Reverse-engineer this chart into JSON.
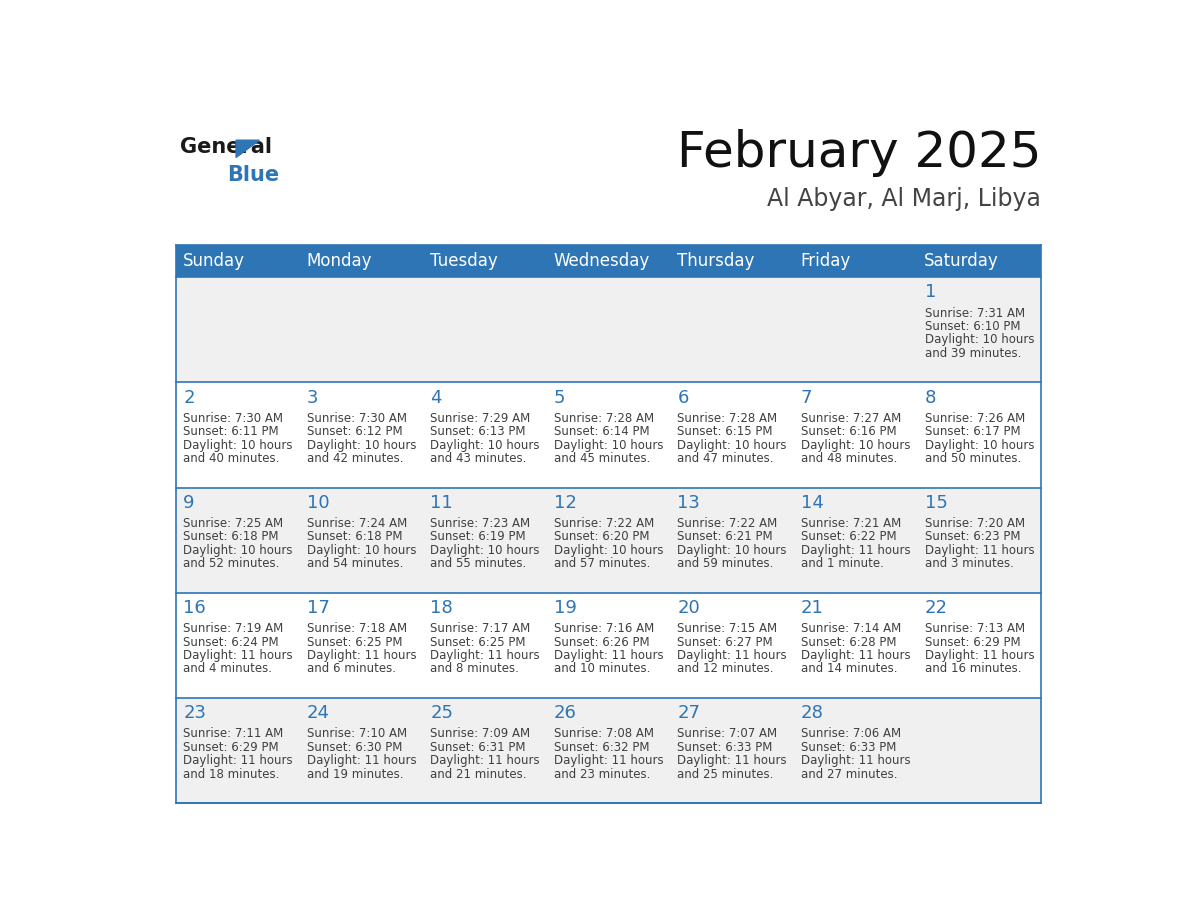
{
  "title": "February 2025",
  "subtitle": "Al Abyar, Al Marj, Libya",
  "header_bg_color": "#2E75B6",
  "header_text_color": "#FFFFFF",
  "day_names": [
    "Sunday",
    "Monday",
    "Tuesday",
    "Wednesday",
    "Thursday",
    "Friday",
    "Saturday"
  ],
  "odd_row_bg": "#F0F0F0",
  "even_row_bg": "#FFFFFF",
  "cell_border_color": "#2E75B6",
  "number_color": "#2E75B6",
  "text_color": "#404040",
  "logo_general_color": "#1a1a1a",
  "logo_blue_color": "#2E75B6",
  "days": [
    {
      "day": 1,
      "col": 6,
      "row": 0,
      "sunrise": "7:31 AM",
      "sunset": "6:10 PM",
      "daylight": "10 hours",
      "daylight2": "and 39 minutes."
    },
    {
      "day": 2,
      "col": 0,
      "row": 1,
      "sunrise": "7:30 AM",
      "sunset": "6:11 PM",
      "daylight": "10 hours",
      "daylight2": "and 40 minutes."
    },
    {
      "day": 3,
      "col": 1,
      "row": 1,
      "sunrise": "7:30 AM",
      "sunset": "6:12 PM",
      "daylight": "10 hours",
      "daylight2": "and 42 minutes."
    },
    {
      "day": 4,
      "col": 2,
      "row": 1,
      "sunrise": "7:29 AM",
      "sunset": "6:13 PM",
      "daylight": "10 hours",
      "daylight2": "and 43 minutes."
    },
    {
      "day": 5,
      "col": 3,
      "row": 1,
      "sunrise": "7:28 AM",
      "sunset": "6:14 PM",
      "daylight": "10 hours",
      "daylight2": "and 45 minutes."
    },
    {
      "day": 6,
      "col": 4,
      "row": 1,
      "sunrise": "7:28 AM",
      "sunset": "6:15 PM",
      "daylight": "10 hours",
      "daylight2": "and 47 minutes."
    },
    {
      "day": 7,
      "col": 5,
      "row": 1,
      "sunrise": "7:27 AM",
      "sunset": "6:16 PM",
      "daylight": "10 hours",
      "daylight2": "and 48 minutes."
    },
    {
      "day": 8,
      "col": 6,
      "row": 1,
      "sunrise": "7:26 AM",
      "sunset": "6:17 PM",
      "daylight": "10 hours",
      "daylight2": "and 50 minutes."
    },
    {
      "day": 9,
      "col": 0,
      "row": 2,
      "sunrise": "7:25 AM",
      "sunset": "6:18 PM",
      "daylight": "10 hours",
      "daylight2": "and 52 minutes."
    },
    {
      "day": 10,
      "col": 1,
      "row": 2,
      "sunrise": "7:24 AM",
      "sunset": "6:18 PM",
      "daylight": "10 hours",
      "daylight2": "and 54 minutes."
    },
    {
      "day": 11,
      "col": 2,
      "row": 2,
      "sunrise": "7:23 AM",
      "sunset": "6:19 PM",
      "daylight": "10 hours",
      "daylight2": "and 55 minutes."
    },
    {
      "day": 12,
      "col": 3,
      "row": 2,
      "sunrise": "7:22 AM",
      "sunset": "6:20 PM",
      "daylight": "10 hours",
      "daylight2": "and 57 minutes."
    },
    {
      "day": 13,
      "col": 4,
      "row": 2,
      "sunrise": "7:22 AM",
      "sunset": "6:21 PM",
      "daylight": "10 hours",
      "daylight2": "and 59 minutes."
    },
    {
      "day": 14,
      "col": 5,
      "row": 2,
      "sunrise": "7:21 AM",
      "sunset": "6:22 PM",
      "daylight": "11 hours",
      "daylight2": "and 1 minute."
    },
    {
      "day": 15,
      "col": 6,
      "row": 2,
      "sunrise": "7:20 AM",
      "sunset": "6:23 PM",
      "daylight": "11 hours",
      "daylight2": "and 3 minutes."
    },
    {
      "day": 16,
      "col": 0,
      "row": 3,
      "sunrise": "7:19 AM",
      "sunset": "6:24 PM",
      "daylight": "11 hours",
      "daylight2": "and 4 minutes."
    },
    {
      "day": 17,
      "col": 1,
      "row": 3,
      "sunrise": "7:18 AM",
      "sunset": "6:25 PM",
      "daylight": "11 hours",
      "daylight2": "and 6 minutes."
    },
    {
      "day": 18,
      "col": 2,
      "row": 3,
      "sunrise": "7:17 AM",
      "sunset": "6:25 PM",
      "daylight": "11 hours",
      "daylight2": "and 8 minutes."
    },
    {
      "day": 19,
      "col": 3,
      "row": 3,
      "sunrise": "7:16 AM",
      "sunset": "6:26 PM",
      "daylight": "11 hours",
      "daylight2": "and 10 minutes."
    },
    {
      "day": 20,
      "col": 4,
      "row": 3,
      "sunrise": "7:15 AM",
      "sunset": "6:27 PM",
      "daylight": "11 hours",
      "daylight2": "and 12 minutes."
    },
    {
      "day": 21,
      "col": 5,
      "row": 3,
      "sunrise": "7:14 AM",
      "sunset": "6:28 PM",
      "daylight": "11 hours",
      "daylight2": "and 14 minutes."
    },
    {
      "day": 22,
      "col": 6,
      "row": 3,
      "sunrise": "7:13 AM",
      "sunset": "6:29 PM",
      "daylight": "11 hours",
      "daylight2": "and 16 minutes."
    },
    {
      "day": 23,
      "col": 0,
      "row": 4,
      "sunrise": "7:11 AM",
      "sunset": "6:29 PM",
      "daylight": "11 hours",
      "daylight2": "and 18 minutes."
    },
    {
      "day": 24,
      "col": 1,
      "row": 4,
      "sunrise": "7:10 AM",
      "sunset": "6:30 PM",
      "daylight": "11 hours",
      "daylight2": "and 19 minutes."
    },
    {
      "day": 25,
      "col": 2,
      "row": 4,
      "sunrise": "7:09 AM",
      "sunset": "6:31 PM",
      "daylight": "11 hours",
      "daylight2": "and 21 minutes."
    },
    {
      "day": 26,
      "col": 3,
      "row": 4,
      "sunrise": "7:08 AM",
      "sunset": "6:32 PM",
      "daylight": "11 hours",
      "daylight2": "and 23 minutes."
    },
    {
      "day": 27,
      "col": 4,
      "row": 4,
      "sunrise": "7:07 AM",
      "sunset": "6:33 PM",
      "daylight": "11 hours",
      "daylight2": "and 25 minutes."
    },
    {
      "day": 28,
      "col": 5,
      "row": 4,
      "sunrise": "7:06 AM",
      "sunset": "6:33 PM",
      "daylight": "11 hours",
      "daylight2": "and 27 minutes."
    }
  ]
}
